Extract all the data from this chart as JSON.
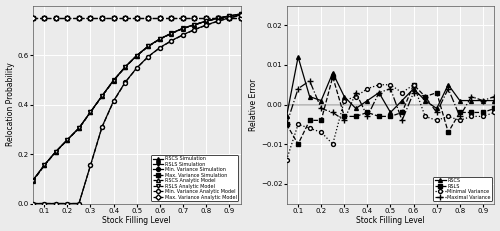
{
  "x": [
    0.05,
    0.1,
    0.15,
    0.2,
    0.25,
    0.3,
    0.35,
    0.4,
    0.45,
    0.5,
    0.55,
    0.6,
    0.65,
    0.7,
    0.75,
    0.8,
    0.85,
    0.9,
    0.95
  ],
  "rscs_sim": [
    0.093,
    0.155,
    0.21,
    0.258,
    0.305,
    0.37,
    0.435,
    0.498,
    0.552,
    0.598,
    0.636,
    0.665,
    0.688,
    0.708,
    0.723,
    0.737,
    0.749,
    0.758,
    0.766
  ],
  "rsls_sim": [
    0.093,
    0.155,
    0.21,
    0.258,
    0.305,
    0.37,
    0.435,
    0.498,
    0.552,
    0.598,
    0.636,
    0.665,
    0.688,
    0.708,
    0.723,
    0.737,
    0.749,
    0.758,
    0.766
  ],
  "minvar_sim": [
    0.0,
    0.0,
    0.0,
    0.0,
    0.0,
    0.155,
    0.31,
    0.415,
    0.49,
    0.548,
    0.594,
    0.63,
    0.658,
    0.682,
    0.703,
    0.721,
    0.737,
    0.75,
    0.762
  ],
  "maxvar_sim": [
    0.748,
    0.748,
    0.748,
    0.748,
    0.748,
    0.748,
    0.748,
    0.748,
    0.748,
    0.748,
    0.748,
    0.748,
    0.748,
    0.748,
    0.748,
    0.748,
    0.748,
    0.748,
    0.748
  ],
  "rscs_ana": [
    0.09,
    0.154,
    0.209,
    0.257,
    0.304,
    0.369,
    0.434,
    0.497,
    0.551,
    0.597,
    0.635,
    0.664,
    0.687,
    0.707,
    0.722,
    0.736,
    0.748,
    0.757,
    0.765
  ],
  "rsls_ana": [
    0.09,
    0.154,
    0.209,
    0.257,
    0.304,
    0.369,
    0.434,
    0.497,
    0.551,
    0.597,
    0.635,
    0.664,
    0.687,
    0.707,
    0.722,
    0.736,
    0.748,
    0.757,
    0.765
  ],
  "minvar_ana": [
    0.0,
    0.0,
    0.0,
    0.0,
    0.0,
    0.154,
    0.309,
    0.413,
    0.489,
    0.547,
    0.593,
    0.629,
    0.657,
    0.681,
    0.702,
    0.72,
    0.736,
    0.749,
    0.761
  ],
  "maxvar_ana": [
    0.748,
    0.748,
    0.748,
    0.748,
    0.748,
    0.748,
    0.748,
    0.748,
    0.748,
    0.748,
    0.748,
    0.748,
    0.748,
    0.748,
    0.748,
    0.748,
    0.748,
    0.748,
    0.748
  ],
  "err_x": [
    0.05,
    0.1,
    0.15,
    0.2,
    0.25,
    0.3,
    0.35,
    0.4,
    0.45,
    0.5,
    0.55,
    0.6,
    0.65,
    0.7,
    0.75,
    0.8,
    0.85,
    0.9,
    0.95
  ],
  "err_rscs": [
    -0.003,
    0.012,
    0.002,
    0.001,
    0.008,
    0.002,
    -0.001,
    0.001,
    0.003,
    -0.002,
    0.001,
    0.004,
    0.001,
    -0.001,
    0.005,
    0.001,
    0.001,
    0.001,
    0.001
  ],
  "err_rsls": [
    -0.005,
    -0.01,
    -0.004,
    -0.004,
    0.007,
    -0.003,
    -0.003,
    -0.002,
    -0.003,
    -0.003,
    -0.002,
    0.005,
    0.002,
    0.003,
    -0.007,
    -0.002,
    -0.002,
    -0.002,
    -0.001
  ],
  "err_minvar": [
    -0.014,
    -0.005,
    -0.006,
    -0.007,
    -0.01,
    0.001,
    0.002,
    0.004,
    0.005,
    0.005,
    0.003,
    0.005,
    -0.003,
    -0.004,
    -0.003,
    -0.004,
    -0.003,
    -0.003,
    -0.002
  ],
  "err_maxvar": [
    -0.005,
    0.004,
    0.006,
    -0.001,
    -0.002,
    -0.004,
    0.003,
    -0.003,
    0.003,
    0.004,
    -0.004,
    0.003,
    0.002,
    -0.002,
    0.004,
    -0.003,
    0.002,
    0.001,
    0.002
  ],
  "ylabel_left": "Relocation Probability",
  "ylabel_right": "Relative Error",
  "xlabel": "Stock Filling Level",
  "ylim_left": [
    0.0,
    0.8
  ],
  "ylim_right": [
    -0.025,
    0.025
  ],
  "xlim": [
    0.05,
    0.95
  ],
  "xticks": [
    0.1,
    0.2,
    0.3,
    0.4,
    0.5,
    0.6,
    0.7,
    0.8,
    0.9
  ],
  "yticks_left": [
    0.0,
    0.2,
    0.4,
    0.6
  ],
  "yticks_right": [
    -0.02,
    -0.01,
    0.0,
    0.01,
    0.02
  ],
  "background_color": "#ebebeb",
  "grid_color": "#ffffff"
}
